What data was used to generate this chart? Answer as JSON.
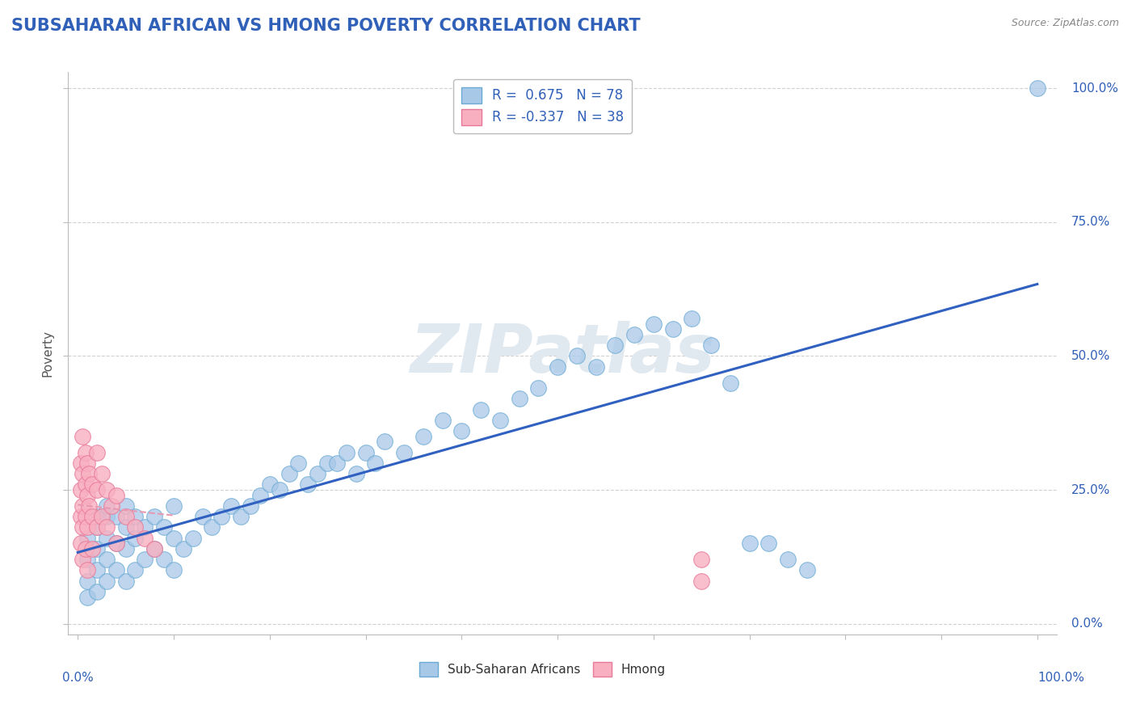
{
  "title": "SUBSAHARAN AFRICAN VS HMONG POVERTY CORRELATION CHART",
  "source_text": "Source: ZipAtlas.com",
  "ylabel": "Poverty",
  "xlim": [
    0,
    100
  ],
  "ylim": [
    0,
    100
  ],
  "r_blue": 0.675,
  "n_blue": 78,
  "r_pink": -0.337,
  "n_pink": 38,
  "blue_color": "#a8c8e8",
  "blue_edge_color": "#6aaad4",
  "pink_color": "#f8b0c0",
  "pink_edge_color": "#e87898",
  "blue_line_color": "#3060c0",
  "pink_line_color": "#e898b0",
  "title_color": "#3060b8",
  "label_color": "#3060b8",
  "source_color": "#888888",
  "ylabel_color": "#555555",
  "grid_color": "#cccccc",
  "watermark": "ZIPatlas",
  "watermark_color": "#e0e8f0",
  "blue_scatter_x": [
    1,
    1,
    1,
    1,
    2,
    2,
    2,
    2,
    2,
    3,
    3,
    3,
    3,
    3,
    4,
    4,
    4,
    5,
    5,
    5,
    5,
    6,
    6,
    6,
    7,
    7,
    8,
    8,
    9,
    9,
    10,
    10,
    10,
    11,
    12,
    13,
    14,
    15,
    16,
    17,
    18,
    19,
    20,
    21,
    22,
    23,
    24,
    25,
    26,
    27,
    28,
    29,
    30,
    31,
    32,
    34,
    36,
    38,
    40,
    42,
    44,
    46,
    48,
    50,
    52,
    54,
    56,
    58,
    60,
    62,
    64,
    66,
    68,
    70,
    72,
    74,
    76,
    100
  ],
  "blue_scatter_y": [
    5,
    8,
    12,
    16,
    6,
    10,
    14,
    18,
    20,
    8,
    12,
    16,
    20,
    22,
    10,
    15,
    20,
    8,
    14,
    18,
    22,
    10,
    16,
    20,
    12,
    18,
    14,
    20,
    12,
    18,
    10,
    16,
    22,
    14,
    16,
    20,
    18,
    20,
    22,
    20,
    22,
    24,
    26,
    25,
    28,
    30,
    26,
    28,
    30,
    30,
    32,
    28,
    32,
    30,
    34,
    32,
    35,
    38,
    36,
    40,
    38,
    42,
    44,
    48,
    50,
    48,
    52,
    54,
    56,
    55,
    57,
    52,
    45,
    15,
    15,
    12,
    10,
    100
  ],
  "pink_scatter_x": [
    0.3,
    0.3,
    0.3,
    0.3,
    0.5,
    0.5,
    0.5,
    0.5,
    0.5,
    0.8,
    0.8,
    0.8,
    0.8,
    1.0,
    1.0,
    1.0,
    1.0,
    1.2,
    1.2,
    1.5,
    1.5,
    1.5,
    2.0,
    2.0,
    2.0,
    2.5,
    2.5,
    3.0,
    3.0,
    3.5,
    4.0,
    4.0,
    5.0,
    6.0,
    7.0,
    8.0,
    65,
    65
  ],
  "pink_scatter_y": [
    30,
    25,
    20,
    15,
    35,
    28,
    22,
    18,
    12,
    32,
    26,
    20,
    14,
    30,
    24,
    18,
    10,
    28,
    22,
    26,
    20,
    14,
    32,
    25,
    18,
    28,
    20,
    25,
    18,
    22,
    24,
    15,
    20,
    18,
    16,
    14,
    12,
    8
  ]
}
